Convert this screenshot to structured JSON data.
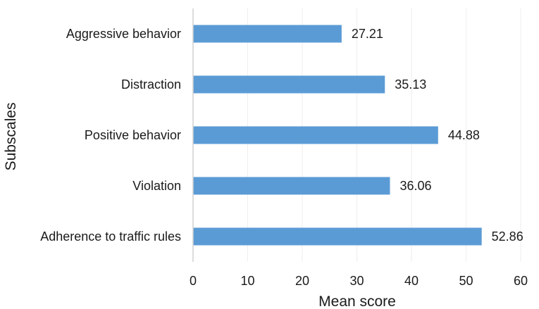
{
  "chart_data": {
    "type": "bar",
    "orientation": "horizontal",
    "title": "",
    "xlabel": "Mean score",
    "ylabel": "Subscales",
    "xlim": [
      0,
      60
    ],
    "xticks": [
      "0",
      "10",
      "20",
      "30",
      "40",
      "50",
      "60"
    ],
    "grid": true,
    "legend": "none",
    "bar_color": "#5b9bd5",
    "categories": [
      "Aggressive behavior",
      "Distraction",
      "Positive behavior",
      "Violation",
      "Adherence to traffic rules"
    ],
    "values": [
      27.21,
      35.13,
      44.88,
      36.06,
      52.86
    ],
    "value_labels": [
      "27.21",
      "35.13",
      "44.88",
      "36.06",
      "52.86"
    ]
  }
}
